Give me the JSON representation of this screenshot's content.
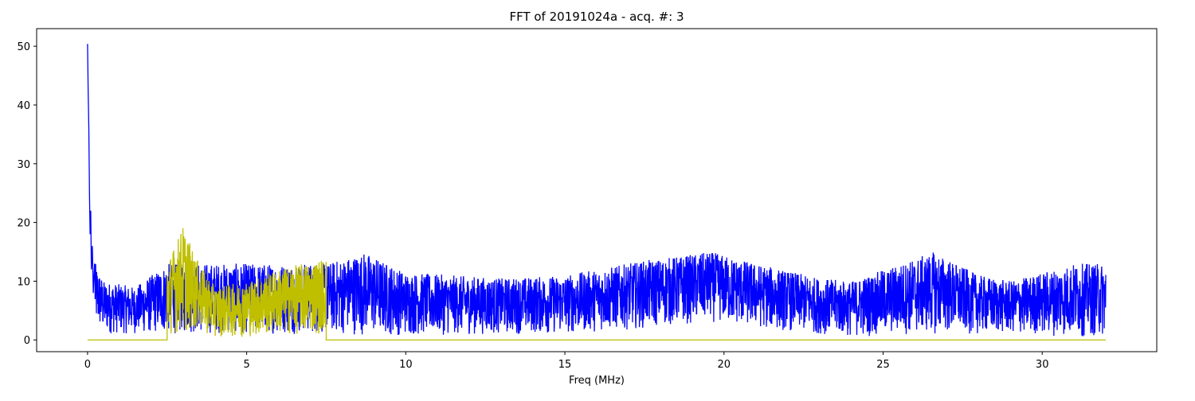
{
  "chart_data": {
    "type": "line",
    "title": "FFT of 20191024a - acq. #: 3",
    "xlabel": "Freq (MHz)",
    "ylabel": "",
    "xlim": [
      -1.6,
      33.6
    ],
    "ylim": [
      -2,
      53
    ],
    "xticks": [
      0,
      5,
      10,
      15,
      20,
      25,
      30
    ],
    "yticks": [
      0,
      10,
      20,
      30,
      40,
      50
    ],
    "grid": false,
    "legend": "none",
    "series": [
      {
        "color": "#0000ff",
        "x_range": [
          0,
          32
        ],
        "peak": {
          "x": 0.02,
          "y": 50.4
        },
        "envelope": [
          {
            "x": 0.1,
            "low": 8,
            "high": 26
          },
          {
            "x": 0.25,
            "low": 2,
            "high": 13
          },
          {
            "x": 0.5,
            "low": 1,
            "high": 10
          },
          {
            "x": 1.5,
            "low": 1,
            "high": 9
          },
          {
            "x": 2.5,
            "low": 1,
            "high": 13
          },
          {
            "x": 7.5,
            "low": 1,
            "high": 13
          },
          {
            "x": 8.7,
            "low": 0.8,
            "high": 15
          },
          {
            "x": 10,
            "low": 0.7,
            "high": 11.5
          },
          {
            "x": 13,
            "low": 1,
            "high": 10.5
          },
          {
            "x": 15,
            "low": 1,
            "high": 11
          },
          {
            "x": 17.5,
            "low": 2,
            "high": 13.5
          },
          {
            "x": 19.6,
            "low": 3,
            "high": 15
          },
          {
            "x": 21,
            "low": 2,
            "high": 13
          },
          {
            "x": 23,
            "low": 1,
            "high": 10.5
          },
          {
            "x": 24,
            "low": 0.5,
            "high": 10
          },
          {
            "x": 26.6,
            "low": 1,
            "high": 15
          },
          {
            "x": 28,
            "low": 1,
            "high": 11
          },
          {
            "x": 29,
            "low": 1,
            "high": 10
          },
          {
            "x": 31,
            "low": 0.5,
            "high": 13
          },
          {
            "x": 32,
            "low": 0.5,
            "high": 13
          }
        ]
      },
      {
        "color": "#bfbf00",
        "x_range": [
          0,
          32
        ],
        "baseline": 0,
        "band": [
          2.5,
          7.5
        ],
        "envelope": [
          {
            "x": 2.5,
            "low": 1,
            "high": 13
          },
          {
            "x": 3,
            "low": 1,
            "high": 19.5
          },
          {
            "x": 3.4,
            "low": 1.5,
            "high": 14
          },
          {
            "x": 4,
            "low": 0.5,
            "high": 9
          },
          {
            "x": 5,
            "low": 0.5,
            "high": 10
          },
          {
            "x": 6,
            "low": 0.8,
            "high": 12
          },
          {
            "x": 7.5,
            "low": 1,
            "high": 14
          }
        ]
      }
    ]
  }
}
